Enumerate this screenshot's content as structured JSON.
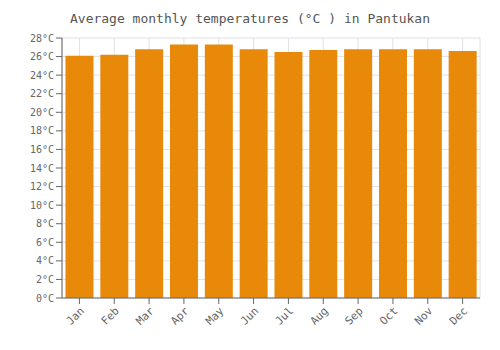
{
  "chart_data": {
    "type": "bar",
    "title": "Average monthly temperatures (°C ) in Pantukan",
    "categories": [
      "Jan",
      "Feb",
      "Mar",
      "Apr",
      "May",
      "Jun",
      "Jul",
      "Aug",
      "Sep",
      "Oct",
      "Nov",
      "Dec"
    ],
    "values": [
      26.1,
      26.2,
      26.8,
      27.3,
      27.3,
      26.8,
      26.5,
      26.7,
      26.8,
      26.8,
      26.8,
      26.6
    ],
    "color": "#E8890A",
    "ylim": [
      0,
      28
    ],
    "yticks": [
      {
        "value": 0,
        "label": "0°C"
      },
      {
        "value": 2,
        "label": "2°C"
      },
      {
        "value": 4,
        "label": "4°C"
      },
      {
        "value": 6,
        "label": "6°C"
      },
      {
        "value": 8,
        "label": "8°C"
      },
      {
        "value": 10,
        "label": "10°C"
      },
      {
        "value": 12,
        "label": "12°C"
      },
      {
        "value": 14,
        "label": "14°C"
      },
      {
        "value": 16,
        "label": "16°C"
      },
      {
        "value": 18,
        "label": "18°C"
      },
      {
        "value": 20,
        "label": "20°C"
      },
      {
        "value": 22,
        "label": "22°C"
      },
      {
        "value": 24,
        "label": "24°C"
      },
      {
        "value": 26,
        "label": "26°C"
      },
      {
        "value": 28,
        "label": "28°C"
      }
    ],
    "grid": true
  }
}
